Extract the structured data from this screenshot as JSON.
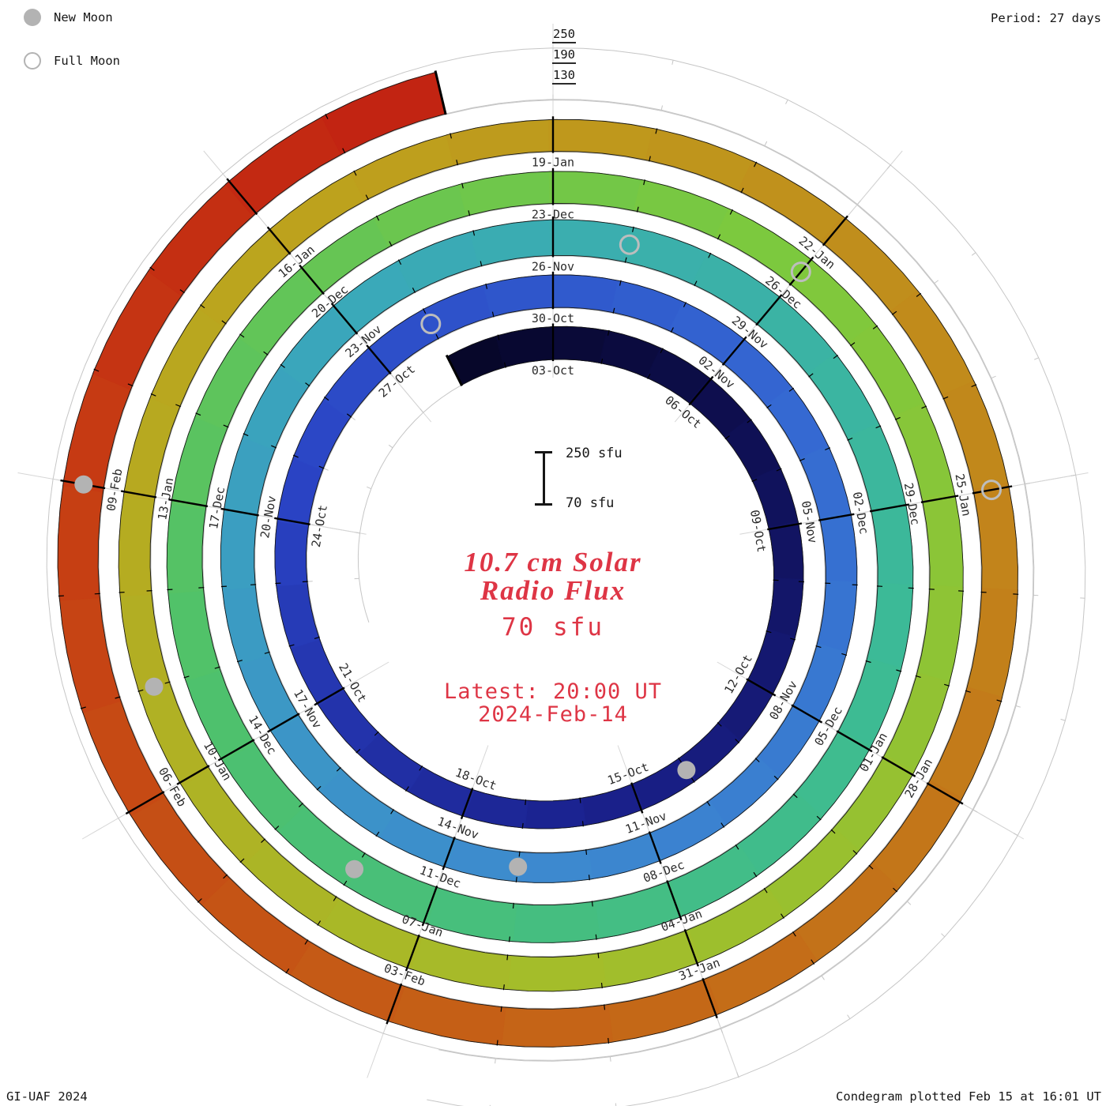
{
  "legend": {
    "new_moon_label": "New Moon",
    "full_moon_label": "Full Moon"
  },
  "header": {
    "period_label": "Period: 27 days"
  },
  "radial_scale": {
    "labels": [
      "250",
      "190",
      "130"
    ]
  },
  "scalebar": {
    "top_label": "250 sfu",
    "bottom_label": "70 sfu"
  },
  "center": {
    "title_line1": "10.7 cm Solar",
    "title_line2": "Radio Flux",
    "value_label": "70 sfu",
    "latest_line1": "Latest: 20:00 UT",
    "latest_line2": "2024-Feb-14"
  },
  "footer": {
    "credit": "GI-UAF 2024",
    "plotted": "Condegram plotted Feb 15 at 16:01 UT"
  },
  "chart_data": {
    "type": "spiral",
    "title": "10.7 cm Solar Radio Flux",
    "units": "sfu",
    "period_days": 27,
    "start_date": "2023-10-01",
    "end_date": "2024-02-14",
    "anchor_date": "2023-10-03",
    "anchor_angle_deg": -90,
    "value_range": [
      70,
      250
    ],
    "flux_daily": [
      155,
      158,
      160,
      162,
      160,
      157,
      153,
      150,
      147,
      144,
      142,
      140,
      138,
      136,
      135,
      134,
      135,
      137,
      140,
      143,
      146,
      149,
      152,
      154,
      156,
      158,
      159,
      160,
      160,
      159,
      158,
      157,
      156,
      155,
      154,
      153,
      152,
      150,
      148,
      146,
      145,
      144,
      144,
      145,
      147,
      150,
      153,
      156,
      159,
      162,
      165,
      168,
      170,
      172,
      173,
      174,
      174,
      173,
      172,
      171,
      170,
      170,
      171,
      172,
      174,
      176,
      178,
      180,
      182,
      183,
      184,
      184,
      183,
      181,
      179,
      176,
      173,
      170,
      167,
      164,
      161,
      159,
      157,
      156,
      155,
      155,
      156,
      157,
      159,
      161,
      163,
      165,
      166,
      167,
      168,
      168,
      167,
      166,
      164,
      162,
      160,
      158,
      156,
      154,
      152,
      151,
      150,
      150,
      151,
      153,
      155,
      158,
      161,
      164,
      167,
      170,
      173,
      176,
      178,
      180,
      181,
      182,
      183,
      184,
      185,
      186,
      188,
      190,
      192,
      194,
      196,
      198,
      200,
      202,
      204,
      206,
      208
    ],
    "label_start_offset_days": 2,
    "label_step_days": 3,
    "date_labels": [
      "03-Oct",
      "06-Oct",
      "09-Oct",
      "12-Oct",
      "15-Oct",
      "18-Oct",
      "21-Oct",
      "24-Oct",
      "27-Oct",
      "30-Oct",
      "02-Nov",
      "05-Nov",
      "08-Nov",
      "11-Nov",
      "14-Nov",
      "17-Nov",
      "20-Nov",
      "23-Nov",
      "26-Nov",
      "29-Nov",
      "02-Dec",
      "05-Dec",
      "08-Dec",
      "11-Dec",
      "14-Dec",
      "17-Dec",
      "20-Dec",
      "23-Dec",
      "26-Dec",
      "29-Dec",
      "01-Jan",
      "04-Jan",
      "07-Jan",
      "10-Jan",
      "13-Jan",
      "16-Jan",
      "19-Jan",
      "22-Jan",
      "25-Jan",
      "28-Jan",
      "31-Jan",
      "03-Feb",
      "06-Feb",
      "09-Feb"
    ],
    "moons": {
      "new": [
        "2023-10-14",
        "2023-11-13",
        "2023-12-12",
        "2024-01-11",
        "2024-02-09"
      ],
      "full": [
        "2023-10-28",
        "2023-11-27",
        "2023-12-26",
        "2024-01-25"
      ]
    },
    "colors": {
      "accent_text": "#de3545",
      "grid": "#d6d6d6",
      "tick": "#000000",
      "moon_fill": "#b3b3b3",
      "moon_stroke": "#bdbdbd",
      "time_colormap": [
        [
          0.0,
          "#07072a"
        ],
        [
          0.05,
          "#10115a"
        ],
        [
          0.11,
          "#1b2290"
        ],
        [
          0.17,
          "#2a43c4"
        ],
        [
          0.24,
          "#3467d2"
        ],
        [
          0.31,
          "#3d89cf"
        ],
        [
          0.39,
          "#3aa8ba"
        ],
        [
          0.47,
          "#3cbb95"
        ],
        [
          0.55,
          "#4ec16c"
        ],
        [
          0.63,
          "#7cc93e"
        ],
        [
          0.71,
          "#a4bd2a"
        ],
        [
          0.79,
          "#bda31d"
        ],
        [
          0.86,
          "#c2841b"
        ],
        [
          0.92,
          "#c55e16"
        ],
        [
          0.97,
          "#c63a13"
        ],
        [
          1.0,
          "#c22412"
        ]
      ]
    }
  }
}
